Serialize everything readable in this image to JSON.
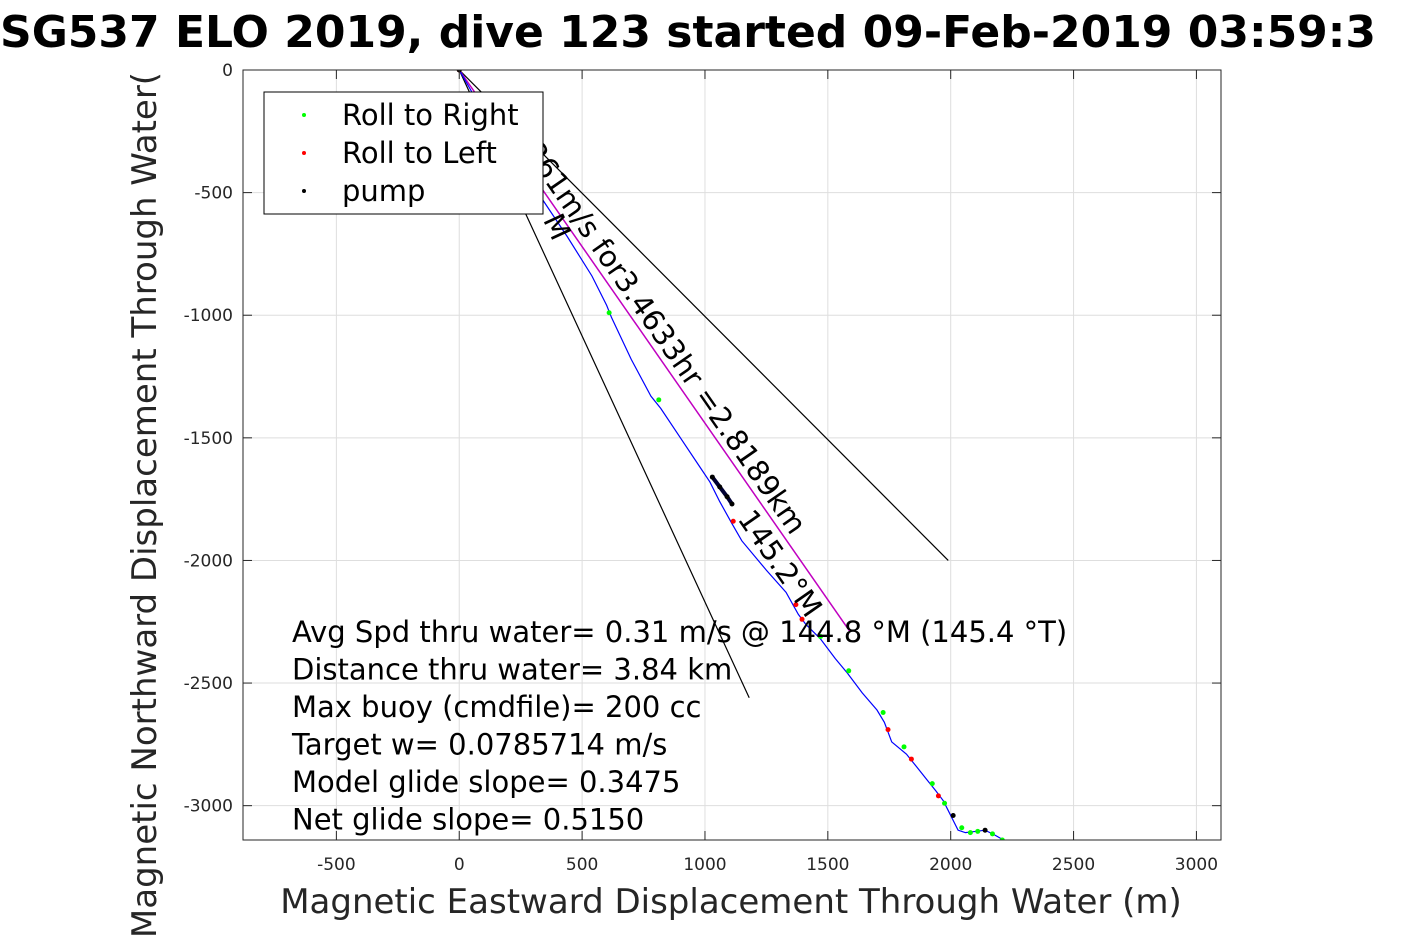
{
  "chart_data": {
    "type": "line",
    "title": "SG537 ELO 2019, dive 123 started 09-Feb-2019 03:59:3",
    "xlabel": "Magnetic Eastward Displacement Through Water (m)",
    "ylabel": "Magnetic Northward Displacement Through Water(",
    "xlim": [
      -880,
      3100
    ],
    "ylim": [
      -3140,
      0
    ],
    "xticks": [
      "-500",
      "0",
      "500",
      "1000",
      "1500",
      "2000",
      "2500",
      "3000"
    ],
    "yticks": [
      "0",
      "-500",
      "-1000",
      "-1500",
      "-2000",
      "-2500",
      "-3000"
    ],
    "grid": true,
    "legend_position": "top-left",
    "legend": [
      {
        "label": "Roll to Right",
        "color": "#00ff00"
      },
      {
        "label": "Roll to Left",
        "color": "#ff0000"
      },
      {
        "label": "pump",
        "color": "#000000"
      }
    ],
    "track": {
      "color": "#0000ff",
      "x": [
        0,
        80,
        200,
        320,
        440,
        540,
        600,
        620,
        700,
        780,
        820,
        900,
        980,
        1020,
        1060,
        1110,
        1150,
        1250,
        1330,
        1380,
        1410,
        1470,
        1530,
        1580,
        1640,
        1700,
        1730,
        1760,
        1820,
        1860,
        1900,
        1940,
        1970,
        1990,
        2010,
        2030,
        2060,
        2100,
        2140,
        2180,
        2215
      ],
      "y": [
        0,
        -140,
        -320,
        -500,
        -680,
        -840,
        -960,
        -1010,
        -1180,
        -1330,
        -1380,
        -1500,
        -1620,
        -1680,
        -1760,
        -1850,
        -1920,
        -2040,
        -2130,
        -2220,
        -2260,
        -2320,
        -2400,
        -2460,
        -2540,
        -2610,
        -2660,
        -2740,
        -2790,
        -2840,
        -2890,
        -2940,
        -2980,
        -3020,
        -3060,
        -3100,
        -3110,
        -3105,
        -3100,
        -3120,
        -3140
      ]
    },
    "roll_right": {
      "color": "#00ff00",
      "x": [
        610,
        812,
        1470,
        1585,
        1725,
        1810,
        1925,
        1975,
        2045,
        2080,
        2110,
        2170,
        2210
      ],
      "y": [
        -990,
        -1345,
        -2310,
        -2450,
        -2620,
        -2760,
        -2910,
        -2990,
        -3090,
        -3110,
        -3105,
        -3115,
        -3140
      ]
    },
    "roll_left": {
      "color": "#ff0000",
      "x": [
        0,
        1115,
        1370,
        1395,
        1745,
        1840,
        1950
      ],
      "y": [
        0,
        -1840,
        -2180,
        -2240,
        -2690,
        -2810,
        -2960
      ]
    },
    "pump": {
      "color": "#000000",
      "x": [
        0,
        1030,
        1060,
        1090,
        1110,
        2010,
        2140
      ],
      "y": [
        0,
        -1660,
        -1700,
        -1740,
        -1770,
        -3040,
        -3100
      ]
    },
    "heading_lines": [
      {
        "color": "#000000",
        "x": [
          0,
          1990
        ],
        "y": [
          0,
          -2000
        ]
      },
      {
        "color": "#000000",
        "x": [
          0,
          1180
        ],
        "y": [
          0,
          -2560
        ]
      }
    ],
    "target_line": {
      "color": "#c000c0",
      "x": [
        0,
        1590
      ],
      "y": [
        0,
        -2290
      ]
    },
    "heading_label": "261m/s for3.4633hr =2.8189km",
    "heading_sublabel": "145.2°M",
    "edge_label": "M",
    "stats": [
      "Avg Spd thru water=  0.31 m/s @ 144.8 °M (145.4 °T)",
      "Distance thru water=  3.84 km",
      "Max buoy (cmdfile)= 200 cc",
      "Target w= 0.0785714 m/s",
      "Model glide slope= 0.3475",
      "Net glide slope= 0.5150"
    ]
  }
}
